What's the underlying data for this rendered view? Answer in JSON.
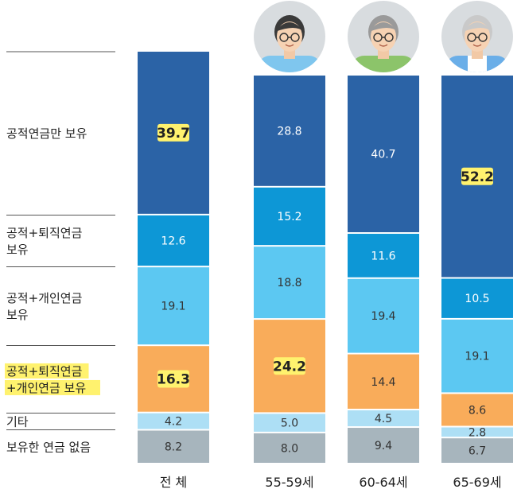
{
  "chart_data": {
    "type": "bar",
    "stacked": true,
    "categories": [
      "전 체",
      "55-59세",
      "60-64세",
      "65-69세"
    ],
    "series": [
      {
        "name": "공적연금만 보유",
        "values": [
          39.7,
          28.8,
          40.7,
          52.2
        ],
        "color": "#2b63a6"
      },
      {
        "name": "공적+퇴직연금 보유",
        "values": [
          12.6,
          15.2,
          11.6,
          10.5
        ],
        "color": "#0d97d6"
      },
      {
        "name": "공적+개인연금 보유",
        "values": [
          19.1,
          18.8,
          19.4,
          19.1
        ],
        "color": "#5cc8f2"
      },
      {
        "name": "공적+퇴직연금 +개인연금 보유",
        "values": [
          16.3,
          24.2,
          14.4,
          8.6
        ],
        "color": "#f9ac5a"
      },
      {
        "name": "기타",
        "values": [
          4.2,
          5.0,
          4.5,
          2.8
        ],
        "color": "#addff5"
      },
      {
        "name": "보유한 연금 없음",
        "values": [
          8.2,
          8.0,
          9.4,
          6.7
        ],
        "color": "#a7b5bd"
      }
    ],
    "row_labels": [
      [
        "공적연금만 보유"
      ],
      [
        "공적+퇴직연금",
        "보유"
      ],
      [
        "공적+개인연금",
        "보유"
      ],
      [
        "공적+퇴직연금",
        "+개인연금 보유"
      ],
      [
        "기타"
      ],
      [
        "보유한 연금 없음"
      ]
    ],
    "highlighted": [
      {
        "series": 0,
        "category": 0
      },
      {
        "series": 0,
        "category": 3
      },
      {
        "series": 3,
        "category": 0
      },
      {
        "series": 3,
        "category": 1
      }
    ],
    "highlighted_row_label": 3,
    "highlight_color": "#fff26e",
    "avatars": [
      "",
      "male-avatar-icon",
      "female-avatar-icon",
      "elderly-male-avatar-icon"
    ]
  }
}
